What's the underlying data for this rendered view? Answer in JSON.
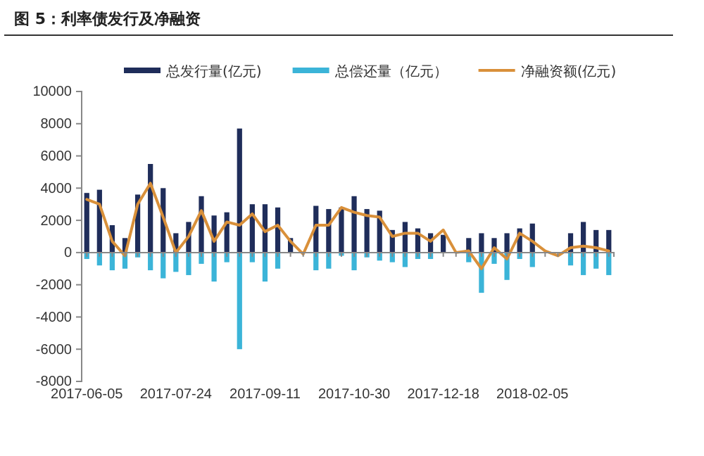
{
  "chart_data": {
    "type": "bar",
    "title": "图 5：利率债发行及净融资",
    "categories": [
      "2017-06-05",
      null,
      null,
      null,
      null,
      null,
      null,
      "2017-07-24",
      null,
      null,
      null,
      null,
      null,
      null,
      "2017-09-11",
      null,
      null,
      null,
      null,
      null,
      null,
      "2017-10-30",
      null,
      null,
      null,
      null,
      null,
      null,
      "2017-12-18",
      null,
      null,
      null,
      null,
      null,
      null,
      "2018-02-05",
      null,
      null,
      null,
      null,
      null,
      null
    ],
    "series": [
      {
        "name": "总发行量(亿元)",
        "color": "#1f2d5a",
        "values": [
          3700,
          3900,
          1700,
          900,
          3600,
          5500,
          4000,
          1200,
          1900,
          3500,
          2300,
          2500,
          7700,
          3000,
          3000,
          2800,
          900,
          null,
          2900,
          2700,
          2800,
          3500,
          2700,
          2600,
          1400,
          1900,
          1500,
          1200,
          1100,
          null,
          900,
          1200,
          900,
          1200,
          1500,
          1800,
          null,
          null,
          1200,
          1900,
          1400,
          1400
        ]
      },
      {
        "name": "总偿还量（亿元）",
        "color": "#3bb4d8",
        "values": [
          -400,
          -800,
          -1100,
          -1000,
          -300,
          -1100,
          -1600,
          -1200,
          -1400,
          -700,
          -1800,
          -600,
          -6000,
          -600,
          -1800,
          -1000,
          null,
          null,
          -1100,
          -1000,
          -200,
          -1100,
          -300,
          -500,
          -600,
          -900,
          -400,
          -400,
          null,
          null,
          -600,
          -2500,
          -700,
          -1700,
          -400,
          -900,
          null,
          null,
          -800,
          -1400,
          -1000,
          -1400
        ]
      },
      {
        "name": "净融资额(亿元)",
        "type": "line",
        "color": "#d9903a",
        "values": [
          3300,
          3000,
          700,
          -200,
          3000,
          4300,
          2200,
          0,
          1000,
          2600,
          700,
          1900,
          1700,
          2400,
          1300,
          1700,
          700,
          -100,
          1700,
          1700,
          2800,
          2500,
          2300,
          2200,
          1000,
          1200,
          1200,
          700,
          1400,
          0,
          100,
          -1000,
          300,
          -400,
          1200,
          700,
          100,
          -200,
          300,
          400,
          300,
          100
        ]
      }
    ],
    "ylim": [
      -8000,
      10000
    ],
    "yticks": [
      -8000,
      -6000,
      -4000,
      -2000,
      0,
      2000,
      4000,
      6000,
      8000,
      10000
    ],
    "grid": false,
    "stacked": true,
    "legend": "top",
    "marker": "none",
    "line_style": "solid"
  }
}
